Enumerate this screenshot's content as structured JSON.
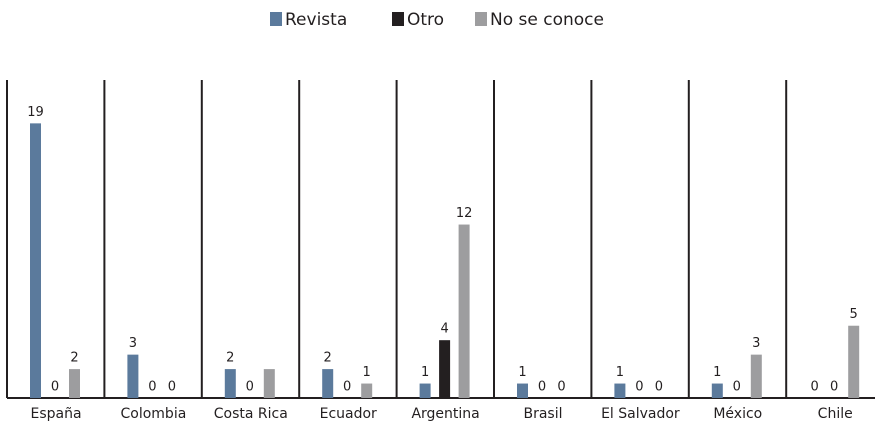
{
  "chart_data": {
    "type": "bar",
    "categories": [
      "España",
      "Colombia",
      "Costa Rica",
      "Ecuador",
      "Argentina",
      "Brasil",
      "El Salvador",
      "México",
      "Chile"
    ],
    "series": [
      {
        "name": "Revista",
        "color": "#5b7a9c",
        "values": [
          19,
          3,
          2,
          2,
          1,
          1,
          1,
          1,
          0
        ]
      },
      {
        "name": "Otro",
        "color": "#231f20",
        "values": [
          0,
          0,
          0,
          0,
          4,
          0,
          0,
          0,
          0
        ]
      },
      {
        "name": "No se conoce",
        "color": "#9d9d9f",
        "values": [
          2,
          0,
          2,
          1,
          12,
          0,
          0,
          3,
          5
        ],
        "value_labels": [
          "2",
          "0",
          null,
          "1",
          "12",
          "0",
          "0",
          "3",
          "5"
        ]
      }
    ],
    "ylim": [
      0,
      22
    ],
    "legend": "top"
  }
}
